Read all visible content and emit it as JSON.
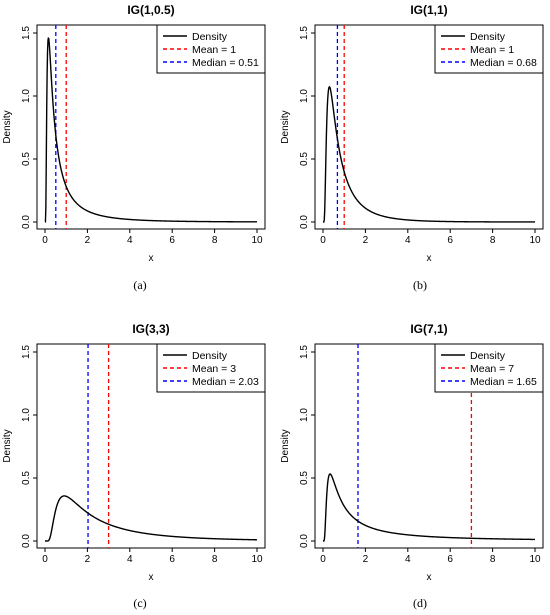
{
  "chart_data": [
    {
      "id": "a",
      "type": "line",
      "title": "IG(1,0.5)",
      "caption": "(a)",
      "xlabel": "x",
      "ylabel": "Density",
      "xlim": [
        0,
        10
      ],
      "ylim": [
        0,
        1.5
      ],
      "xticks": [
        "0",
        "2",
        "4",
        "6",
        "8",
        "10"
      ],
      "yticks": [
        "0.0",
        "0.5",
        "1.0",
        "1.5"
      ],
      "ig": {
        "mu": 1,
        "lambda": 0.5
      },
      "series": [
        {
          "name": "Density",
          "color": "#000000"
        }
      ],
      "mean": {
        "value": 1,
        "label": "Mean = 1",
        "color": "#ff0000"
      },
      "median": {
        "value": 0.51,
        "label": "Median = 0.51",
        "color": "#0000ff"
      },
      "legend_position": "top-right"
    },
    {
      "id": "b",
      "type": "line",
      "title": "IG(1,1)",
      "caption": "(b)",
      "xlabel": "x",
      "ylabel": "Density",
      "xlim": [
        0,
        10
      ],
      "ylim": [
        0,
        1.5
      ],
      "xticks": [
        "0",
        "2",
        "4",
        "6",
        "8",
        "10"
      ],
      "yticks": [
        "0.0",
        "0.5",
        "1.0",
        "1.5"
      ],
      "ig": {
        "mu": 1,
        "lambda": 1
      },
      "series": [
        {
          "name": "Density",
          "color": "#000000"
        }
      ],
      "mean": {
        "value": 1,
        "label": "Mean = 1",
        "color": "#ff0000"
      },
      "median": {
        "value": 0.68,
        "label": "Median = 0.68",
        "color": "#0000ff"
      },
      "legend_position": "top-right"
    },
    {
      "id": "c",
      "type": "line",
      "title": "IG(3,3)",
      "caption": "(c)",
      "xlabel": "x",
      "ylabel": "Density",
      "xlim": [
        0,
        10
      ],
      "ylim": [
        0,
        1.5
      ],
      "xticks": [
        "0",
        "2",
        "4",
        "6",
        "8",
        "10"
      ],
      "yticks": [
        "0.0",
        "0.5",
        "1.0",
        "1.5"
      ],
      "ig": {
        "mu": 3,
        "lambda": 3
      },
      "series": [
        {
          "name": "Density",
          "color": "#000000"
        }
      ],
      "mean": {
        "value": 3,
        "label": "Mean = 3",
        "color": "#ff0000"
      },
      "median": {
        "value": 2.03,
        "label": "Median = 2.03",
        "color": "#0000ff"
      },
      "legend_position": "top-right"
    },
    {
      "id": "d",
      "type": "line",
      "title": "IG(7,1)",
      "caption": "(d)",
      "xlabel": "x",
      "ylabel": "Density",
      "xlim": [
        0,
        10
      ],
      "ylim": [
        0,
        1.5
      ],
      "xticks": [
        "0",
        "2",
        "4",
        "6",
        "8",
        "10"
      ],
      "yticks": [
        "0.0",
        "0.5",
        "1.0",
        "1.5"
      ],
      "ig": {
        "mu": 7,
        "lambda": 1
      },
      "series": [
        {
          "name": "Density",
          "color": "#000000"
        }
      ],
      "mean": {
        "value": 7,
        "label": "Mean = 7",
        "color": "#ff0000"
      },
      "median": {
        "value": 1.65,
        "label": "Median = 1.65",
        "color": "#0000ff"
      },
      "legend_position": "top-right"
    }
  ]
}
